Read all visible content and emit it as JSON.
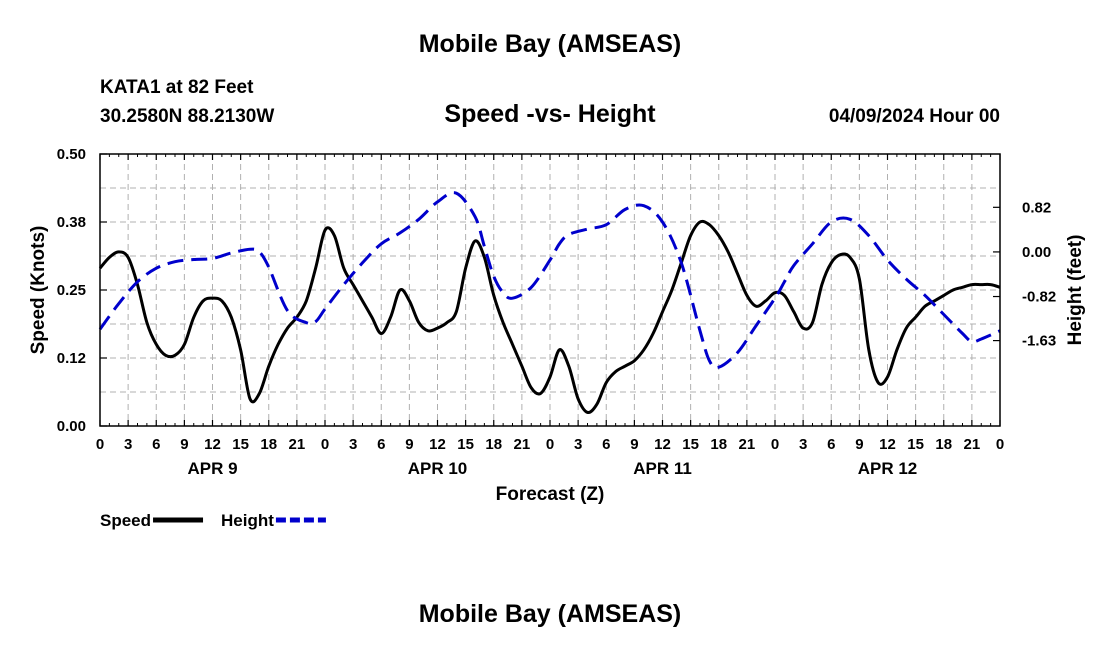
{
  "header": {
    "title": "Mobile Bay (AMSEAS)",
    "station": "KATA1 at 82 Feet",
    "coords": "30.2580N  88.2130W",
    "subtitle": "Speed -vs- Height",
    "datetime": "04/09/2024 Hour 00",
    "footer_title": "Mobile Bay (AMSEAS)"
  },
  "chart_data": {
    "type": "line",
    "xlabel": "Forecast (Z)",
    "ylabel_left": "Speed (Knots)",
    "ylabel_right": "Height (feet)",
    "x_range": [
      0,
      96
    ],
    "y_left_range": [
      0,
      0.5
    ],
    "y_right_range": [
      -3.2,
      1.8
    ],
    "y_left_ticks": [
      "0.00",
      "0.12",
      "0.25",
      "0.38",
      "0.50"
    ],
    "y_left_tick_values": [
      0,
      0.125,
      0.25,
      0.375,
      0.5
    ],
    "y_right_ticks": [
      "0.82",
      "0.00",
      "-0.82",
      "-1.63"
    ],
    "y_right_tick_values": [
      0.82,
      0.0,
      -0.82,
      -1.63
    ],
    "x_tick_labels": [
      "0",
      "3",
      "6",
      "9",
      "12",
      "15",
      "18",
      "21",
      "0",
      "3",
      "6",
      "9",
      "12",
      "15",
      "18",
      "21",
      "0",
      "3",
      "6",
      "9",
      "12",
      "15",
      "18",
      "21",
      "0",
      "3",
      "6",
      "9",
      "12",
      "15",
      "18",
      "21",
      "0"
    ],
    "day_labels": [
      {
        "label": "APR 9",
        "hour": 12
      },
      {
        "label": "APR 10",
        "hour": 36
      },
      {
        "label": "APR 11",
        "hour": 60
      },
      {
        "label": "APR 12",
        "hour": 84
      }
    ],
    "grid": true,
    "legend_position": "bottom-left",
    "series": [
      {
        "name": "Speed",
        "axis": "left",
        "color": "#000000",
        "style": "solid",
        "x": [
          0,
          1,
          2,
          3,
          4,
          5,
          6,
          7,
          8,
          9,
          10,
          11,
          12,
          13,
          14,
          15,
          16,
          17,
          18,
          19,
          20,
          21,
          22,
          23,
          24,
          25,
          26,
          27,
          28,
          29,
          30,
          31,
          32,
          33,
          34,
          35,
          36,
          37,
          38,
          39,
          40,
          41,
          42,
          43,
          44,
          45,
          46,
          47,
          48,
          49,
          50,
          51,
          52,
          53,
          54,
          55,
          56,
          57,
          58,
          59,
          60,
          61,
          62,
          63,
          64,
          65,
          66,
          67,
          68,
          69,
          70,
          71,
          72,
          73,
          74,
          75,
          76,
          77,
          78,
          79,
          80,
          81,
          82,
          83,
          84,
          85,
          86,
          87,
          88,
          89,
          90,
          91,
          92,
          93,
          94,
          95,
          96
        ],
        "values": [
          0.29,
          0.31,
          0.32,
          0.31,
          0.26,
          0.19,
          0.15,
          0.13,
          0.13,
          0.15,
          0.2,
          0.23,
          0.235,
          0.23,
          0.2,
          0.14,
          0.05,
          0.06,
          0.11,
          0.15,
          0.18,
          0.2,
          0.23,
          0.29,
          0.36,
          0.35,
          0.29,
          0.26,
          0.23,
          0.2,
          0.17,
          0.2,
          0.25,
          0.23,
          0.19,
          0.175,
          0.18,
          0.19,
          0.21,
          0.29,
          0.34,
          0.31,
          0.24,
          0.19,
          0.15,
          0.11,
          0.07,
          0.06,
          0.09,
          0.14,
          0.11,
          0.05,
          0.025,
          0.04,
          0.08,
          0.1,
          0.11,
          0.12,
          0.14,
          0.17,
          0.21,
          0.25,
          0.3,
          0.35,
          0.375,
          0.37,
          0.35,
          0.32,
          0.28,
          0.24,
          0.22,
          0.23,
          0.245,
          0.24,
          0.21,
          0.18,
          0.19,
          0.26,
          0.3,
          0.315,
          0.31,
          0.27,
          0.14,
          0.08,
          0.09,
          0.14,
          0.18,
          0.2,
          0.22,
          0.23,
          0.24,
          0.25,
          0.255,
          0.26,
          0.26,
          0.26,
          0.255
        ]
      },
      {
        "name": "Height",
        "axis": "right",
        "color": "#0000cc",
        "style": "dashed",
        "x": [
          0,
          2,
          4,
          6,
          8,
          10,
          12,
          14,
          16,
          17,
          18,
          20,
          22,
          23,
          24,
          26,
          28,
          30,
          32,
          34,
          36,
          38,
          40,
          41,
          42,
          43,
          44,
          46,
          48,
          49,
          50,
          52,
          54,
          56,
          58,
          60,
          62,
          64,
          65,
          66,
          68,
          70,
          72,
          73,
          74,
          76,
          78,
          80,
          82,
          84,
          86,
          88,
          90,
          92,
          93,
          94,
          96
        ],
        "values": [
          -1.42,
          -0.95,
          -0.55,
          -0.3,
          -0.18,
          -0.14,
          -0.12,
          -0.02,
          0.05,
          0.0,
          -0.28,
          -1.08,
          -1.3,
          -1.28,
          -1.05,
          -0.6,
          -0.2,
          0.15,
          0.35,
          0.6,
          0.92,
          1.08,
          0.65,
          0.1,
          -0.45,
          -0.75,
          -0.85,
          -0.65,
          -0.15,
          0.15,
          0.32,
          0.42,
          0.5,
          0.78,
          0.85,
          0.55,
          -0.2,
          -1.45,
          -2.0,
          -2.12,
          -1.85,
          -1.35,
          -0.85,
          -0.55,
          -0.25,
          0.15,
          0.55,
          0.6,
          0.3,
          -0.15,
          -0.5,
          -0.8,
          -1.15,
          -1.5,
          -1.65,
          -1.6,
          -1.45
        ]
      }
    ]
  }
}
